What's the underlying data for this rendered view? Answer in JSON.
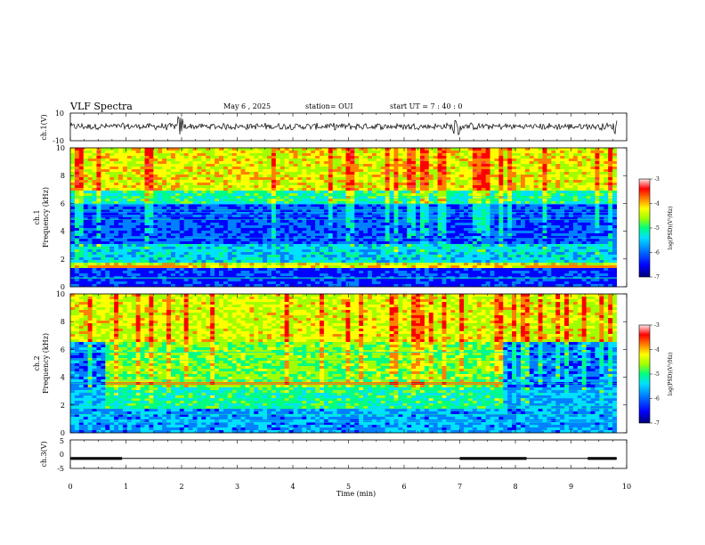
{
  "header": {
    "title": "VLF Spectra",
    "date": "May 6  , 2025",
    "station": "station= OUI",
    "start": "start  UT  =   7 : 40 : 0"
  },
  "chart_data": [
    {
      "type": "line",
      "panel": "ch1-waveform",
      "ylabel": "ch.1(V)",
      "ylim": [
        -10,
        10
      ],
      "yticks": [
        "10",
        "-10"
      ],
      "xlim": [
        0,
        10
      ],
      "series": [
        {
          "values_baseline": 0,
          "noise_amplitude": 1,
          "spikes_at_min": [
            1.95,
            2.0,
            6.9,
            7.0,
            9.8
          ]
        }
      ]
    },
    {
      "type": "heatmap",
      "panel": "ch1-spectrogram",
      "ylabel": "ch.1\nFrequency  (kHz)",
      "ylim": [
        0,
        10
      ],
      "yticks": [
        "0",
        "2",
        "4",
        "6",
        "8",
        "10"
      ],
      "xlim": [
        0,
        10
      ],
      "colorbar": {
        "label": "log(PSD)(V²/Hz)",
        "range": [
          -7,
          -3
        ],
        "ticks": [
          "-3",
          "-4",
          "-5",
          "-6",
          "-7"
        ]
      }
    },
    {
      "type": "heatmap",
      "panel": "ch2-spectrogram",
      "ylabel": "ch.2\nFrequency  (kHz)",
      "ylim": [
        0,
        10
      ],
      "yticks": [
        "0",
        "2",
        "4",
        "6",
        "8",
        "10"
      ],
      "xlim": [
        0,
        10
      ],
      "colorbar": {
        "label": "log(PSD)(V²/Hz)",
        "range": [
          -7,
          -3
        ],
        "ticks": [
          "-3",
          "-4",
          "-5",
          "-6",
          "-7"
        ]
      }
    },
    {
      "type": "line",
      "panel": "ch3-voltage",
      "ylabel": "ch.3(V)",
      "ylim": [
        -5,
        5
      ],
      "yticks": [
        "5",
        "0",
        "-5"
      ],
      "xlim": [
        0,
        10
      ],
      "series": [
        {
          "level": -1.5,
          "thick_segments_min": [
            [
              0,
              0.93
            ],
            [
              7.0,
              8.2
            ],
            [
              9.3,
              9.82
            ]
          ]
        }
      ]
    }
  ],
  "xaxis": {
    "label": "Time  (min)",
    "ticks": [
      "0",
      "1",
      "2",
      "3",
      "4",
      "5",
      "6",
      "7",
      "8",
      "9",
      "10"
    ]
  },
  "colors": {
    "colormap": [
      "#00007a",
      "#0000ff",
      "#0080ff",
      "#00e0ff",
      "#00ff80",
      "#a0ff00",
      "#ffff00",
      "#ff8000",
      "#ff0000",
      "#ff4040",
      "#ffe8e8"
    ]
  }
}
